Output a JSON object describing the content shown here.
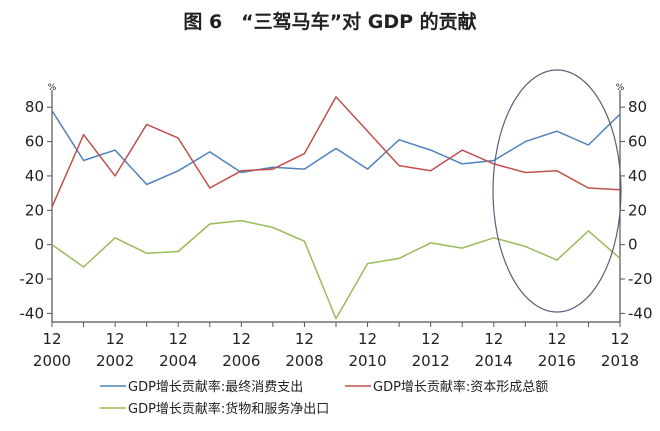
{
  "chart_data": {
    "type": "line",
    "title": "图 6　“三驾马车”对 GDP 的贡献",
    "y_unit_left": "%",
    "y_unit_right": "%",
    "ylim": [
      -45,
      90
    ],
    "yticks": [
      -40,
      -20,
      0,
      20,
      40,
      60,
      80
    ],
    "x": [
      2000,
      2001,
      2002,
      2003,
      2004,
      2005,
      2006,
      2007,
      2008,
      2009,
      2010,
      2011,
      2012,
      2013,
      2014,
      2015,
      2016,
      2017,
      2018
    ],
    "x_tick_years": [
      2000,
      2002,
      2004,
      2006,
      2008,
      2010,
      2012,
      2014,
      2016,
      2018
    ],
    "x_tick_month": "12",
    "series": [
      {
        "name": "GDP增长贡献率:最终消费支出",
        "color": "#4f81bd",
        "values": [
          78,
          49,
          55,
          35,
          43,
          54,
          42,
          45,
          44,
          56,
          44,
          61,
          55,
          47,
          49,
          60,
          66,
          58,
          76
        ]
      },
      {
        "name": "GDP增长贡献率:资本形成总额",
        "color": "#c0504d",
        "values": [
          22,
          64,
          40,
          70,
          62,
          33,
          43,
          44,
          53,
          86,
          66,
          46,
          43,
          55,
          47,
          42,
          43,
          33,
          32
        ]
      },
      {
        "name": "GDP增长贡献率:货物和服务净出口",
        "color": "#9bbb59",
        "values": [
          0,
          -13,
          4,
          -5,
          -4,
          12,
          14,
          10,
          2,
          -43,
          -11,
          -8,
          1,
          -2,
          4,
          -1,
          -9,
          8,
          -8
        ]
      }
    ],
    "grid": false,
    "legend_position": "bottom",
    "annotation": "ellipse highlighting 2014-2018"
  }
}
